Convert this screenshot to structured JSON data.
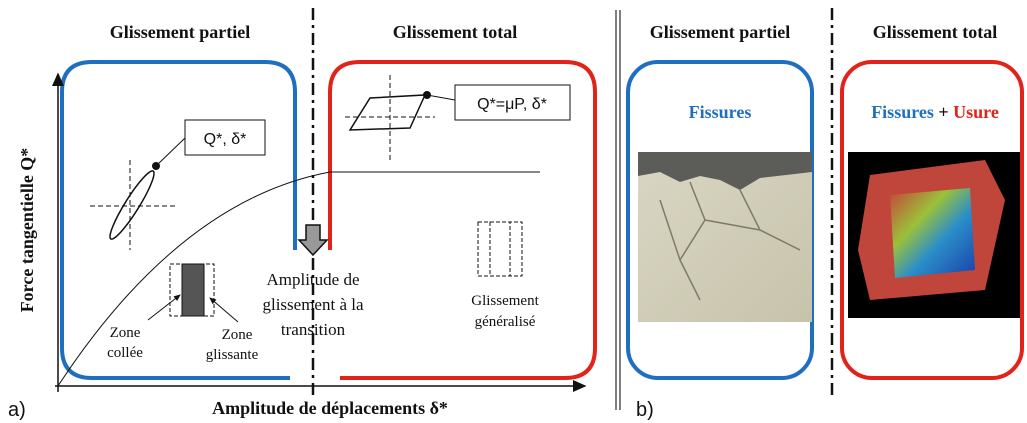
{
  "panel_a": {
    "label": "a)",
    "header_left": "Glissement partiel",
    "header_right": "Glissement total",
    "y_axis_label": "Force tangentielle Q*",
    "x_axis_label": "Amplitude de déplacements δ*",
    "box_left": "Q*, δ*",
    "box_right": "Q*=μP, δ*",
    "transition": [
      "Amplitude de",
      "glissement à la",
      "transition"
    ],
    "zone_stuck": [
      "Zone",
      "collée"
    ],
    "zone_slip": [
      "Zone",
      "glissante"
    ],
    "general_slip": [
      "Glissement",
      "généralisé"
    ]
  },
  "panel_b": {
    "label": "b)",
    "header_left": "Glissement partiel",
    "header_right": "Glissement total",
    "left_caption": "Fissures",
    "right_caption": {
      "part1": "Fissures",
      "plus": "+",
      "part2": "Usure"
    }
  }
}
